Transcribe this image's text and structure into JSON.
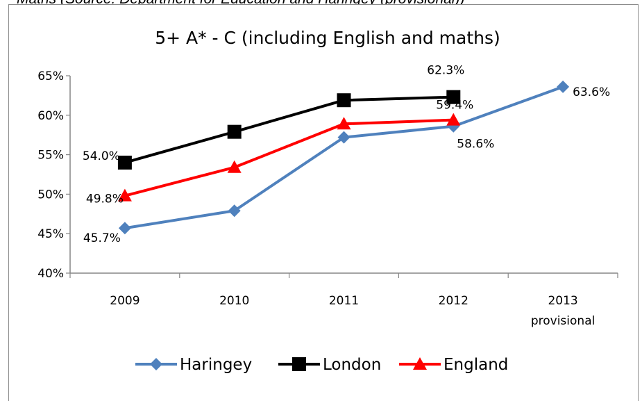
{
  "caption": "Maths (Source: Department for Education and Haringey (provisional))",
  "chart_data": {
    "type": "line",
    "title": "5+ A* - C (including English and maths)",
    "xlabel": "",
    "ylabel": "",
    "categories": [
      "2009",
      "2010",
      "2011",
      "2012",
      "2013\nprovisional"
    ],
    "category_labels": [
      [
        "2009"
      ],
      [
        "2010"
      ],
      [
        "2011"
      ],
      [
        "2012"
      ],
      [
        "2013",
        "provisional"
      ]
    ],
    "ylim": [
      40,
      65
    ],
    "yticks": [
      40,
      45,
      50,
      55,
      60,
      65
    ],
    "ytick_labels": [
      "40%",
      "45%",
      "50%",
      "55%",
      "60%",
      "65%"
    ],
    "grid": false,
    "legend_position": "bottom",
    "series": [
      {
        "name": "Haringey",
        "color": "#4f81bd",
        "marker": "diamond",
        "values": [
          45.7,
          47.9,
          57.2,
          58.6,
          63.6
        ],
        "data_labels": [
          "45.7%",
          null,
          null,
          "58.6%",
          "63.6%"
        ]
      },
      {
        "name": "London",
        "color": "#000000",
        "marker": "square",
        "values": [
          54.0,
          57.9,
          61.9,
          62.3,
          null
        ],
        "data_labels": [
          "54.0%",
          null,
          null,
          "62.3%",
          null
        ]
      },
      {
        "name": "England",
        "color": "#ff0000",
        "marker": "triangle",
        "values": [
          49.8,
          53.4,
          58.9,
          59.4,
          null
        ],
        "data_labels": [
          "49.8%",
          null,
          null,
          "59.4%",
          null
        ]
      }
    ]
  }
}
